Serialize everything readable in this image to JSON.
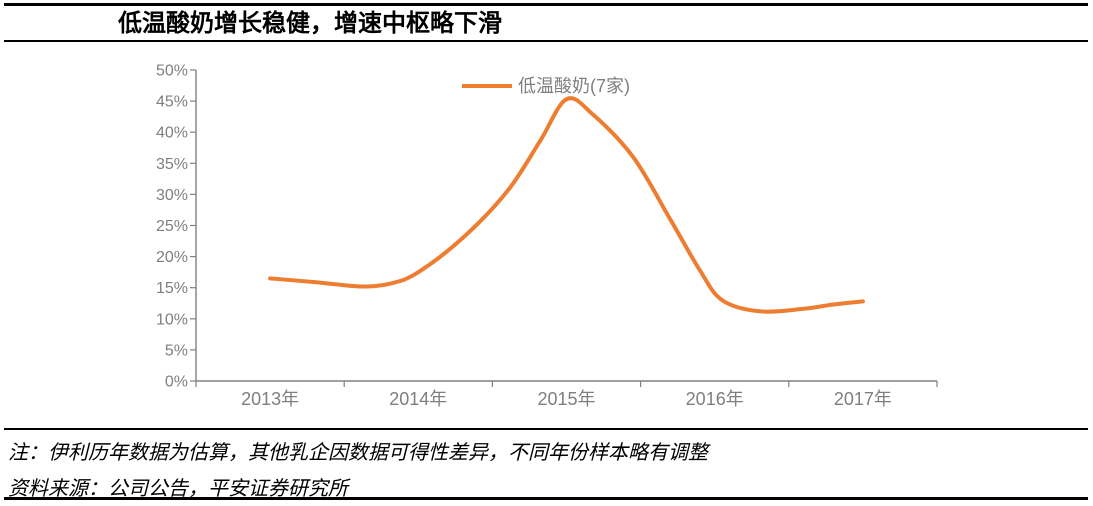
{
  "header": {
    "title": "低温酸奶增长稳健，增速中枢略下滑"
  },
  "footer": {
    "note": "注：伊利历年数据为估算，其他乳企因数据可得性差异，不同年份样本略有调整",
    "source": "资料来源：公司公告，平安证券研究所"
  },
  "colors": {
    "line": "#ED7D31",
    "axis": "#808080",
    "tick_label": "#7F7F7F",
    "rule": "#000000",
    "background": "#FFFFFF"
  },
  "chart_data": {
    "type": "line",
    "title": "低温酸奶增长稳健，增速中枢略下滑",
    "smooth": true,
    "grid": false,
    "legend_position": "top-center",
    "categories": [
      "2013年",
      "2014年",
      "2015年",
      "2016年",
      "2017年"
    ],
    "series": [
      {
        "name": "低温酸奶(7家)",
        "color": "#ED7D31",
        "values": [
          16.5,
          17.5,
          45.0,
          13.5,
          12.8
        ]
      }
    ],
    "y_axis": {
      "min": 0,
      "max": 50,
      "step": 5,
      "unit": "percent",
      "tick_labels": [
        "0%",
        "5%",
        "10%",
        "15%",
        "20%",
        "25%",
        "30%",
        "35%",
        "40%",
        "45%",
        "50%"
      ]
    },
    "x_axis": {
      "tick_labels": [
        "2013年",
        "2014年",
        "2015年",
        "2016年",
        "2017年"
      ]
    },
    "curve_samples": [
      [
        0.0,
        16.5
      ],
      [
        0.3,
        15.9
      ],
      [
        0.62,
        15.2
      ],
      [
        0.82,
        15.7
      ],
      [
        1.0,
        17.5
      ],
      [
        1.3,
        23.0
      ],
      [
        1.6,
        30.5
      ],
      [
        1.82,
        38.5
      ],
      [
        2.0,
        45.3
      ],
      [
        2.18,
        42.8
      ],
      [
        2.45,
        36.0
      ],
      [
        2.7,
        26.0
      ],
      [
        2.9,
        17.8
      ],
      [
        3.05,
        13.0
      ],
      [
        3.3,
        11.2
      ],
      [
        3.6,
        11.6
      ],
      [
        3.8,
        12.3
      ],
      [
        4.0,
        12.8
      ]
    ]
  }
}
